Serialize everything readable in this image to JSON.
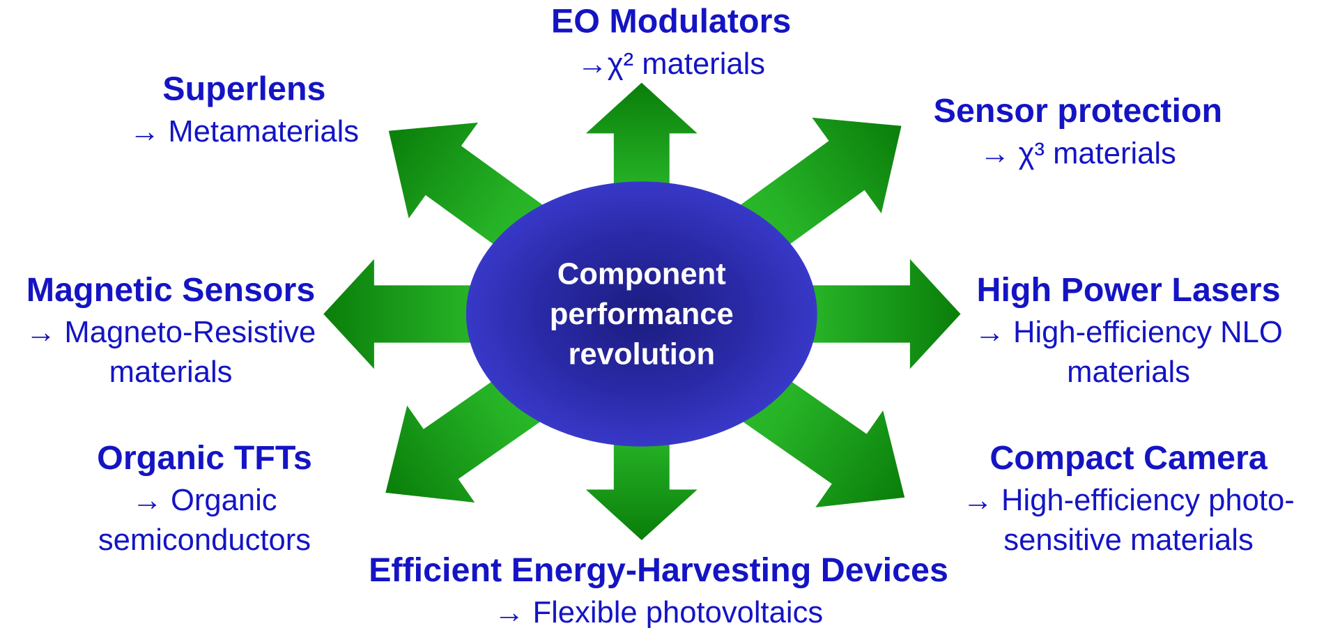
{
  "center": {
    "lines": [
      "Component",
      "performance",
      "revolution"
    ]
  },
  "nodes": [
    {
      "title": "EO Modulators",
      "lines": [
        "→χ² materials"
      ]
    },
    {
      "title": "Superlens",
      "lines": [
        "→ Metamaterials"
      ]
    },
    {
      "title": "Sensor protection",
      "lines": [
        "→ χ³ materials"
      ]
    },
    {
      "title": "Magnetic Sensors",
      "lines": [
        "→ Magneto-Resistive",
        "materials"
      ]
    },
    {
      "title": "High Power Lasers",
      "lines": [
        "→ High-efficiency NLO",
        "materials"
      ]
    },
    {
      "title": "Organic TFTs",
      "lines": [
        "→ Organic",
        "semiconductors"
      ]
    },
    {
      "title": "Compact Camera",
      "lines": [
        "→ High-efficiency photo-",
        "sensitive materials"
      ]
    },
    {
      "title": "Efficient Energy-Harvesting Devices",
      "lines": [
        "→ Flexible photovoltaics"
      ]
    }
  ]
}
